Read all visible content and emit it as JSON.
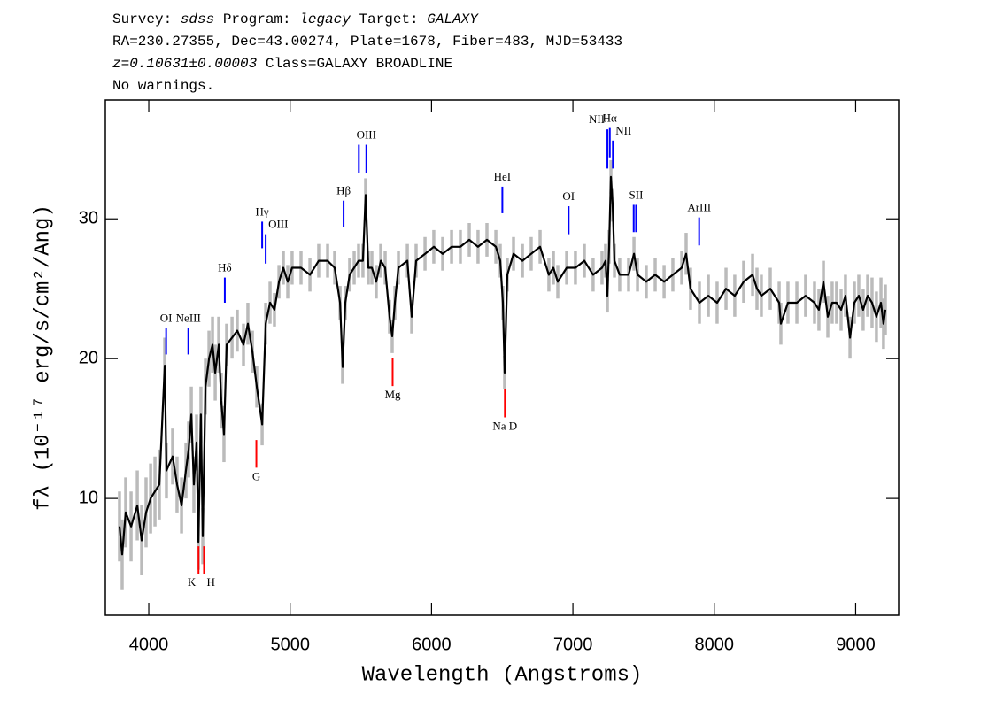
{
  "chart_data": {
    "type": "line",
    "header": [
      [
        {
          "text": "Survey: "
        },
        {
          "text": "sdss",
          "italic": true
        },
        {
          "text": " Program: "
        },
        {
          "text": "legacy",
          "italic": true
        },
        {
          "text": " Target: "
        },
        {
          "text": "GALAXY",
          "italic": true
        }
      ],
      [
        {
          "text": "RA=230.27355, Dec=43.00274, Plate=1678, Fiber=483, MJD=53433"
        }
      ],
      [
        {
          "text": "z=0.10631±0.00003",
          "italic": true
        },
        {
          "text": " Class=GALAXY BROADLINE"
        }
      ],
      [
        {
          "text": "No warnings."
        }
      ]
    ],
    "xlabel": "Wavelength (Angstroms)",
    "ylabel": "fλ (10⁻¹⁷ erg/s/cm²/Ang)",
    "xlim": [
      3693,
      9304
    ],
    "ylim": [
      1.65,
      38.5
    ],
    "xticks": [
      4000,
      5000,
      6000,
      7000,
      8000,
      9000
    ],
    "yticks": [
      10,
      20,
      30
    ],
    "color": "#000000",
    "error_color": "#bbbbbb",
    "x": [
      3793,
      3812,
      3837,
      3875,
      3919,
      3950,
      3981,
      4013,
      4044,
      4075,
      4113,
      4125,
      4169,
      4200,
      4232,
      4263,
      4282,
      4301,
      4319,
      4338,
      4351,
      4369,
      4382,
      4401,
      4426,
      4451,
      4470,
      4495,
      4513,
      4532,
      4551,
      4589,
      4626,
      4670,
      4701,
      4733,
      4764,
      4802,
      4827,
      4858,
      4889,
      4921,
      4952,
      4983,
      5014,
      5077,
      5140,
      5202,
      5265,
      5315,
      5353,
      5371,
      5390,
      5421,
      5453,
      5484,
      5515,
      5534,
      5553,
      5578,
      5609,
      5641,
      5672,
      5703,
      5722,
      5741,
      5766,
      5829,
      5860,
      5891,
      5954,
      6016,
      6079,
      6142,
      6204,
      6267,
      6329,
      6392,
      6455,
      6486,
      6505,
      6517,
      6536,
      6580,
      6643,
      6705,
      6768,
      6830,
      6862,
      6893,
      6956,
      7018,
      7081,
      7143,
      7206,
      7231,
      7244,
      7256,
      7269,
      7281,
      7294,
      7331,
      7394,
      7432,
      7457,
      7519,
      7582,
      7645,
      7707,
      7770,
      7801,
      7832,
      7895,
      7958,
      8020,
      8083,
      8145,
      8208,
      8271,
      8302,
      8333,
      8396,
      8459,
      8471,
      8521,
      8584,
      8646,
      8709,
      8740,
      8772,
      8803,
      8834,
      8865,
      8897,
      8928,
      8960,
      8991,
      9022,
      9053,
      9085,
      9116,
      9147,
      9179,
      9197,
      9210
    ],
    "values": [
      8,
      6,
      9,
      8,
      9.5,
      7,
      9,
      10,
      10.5,
      11,
      19.5,
      12,
      13,
      11,
      9.5,
      12,
      13.5,
      16,
      11,
      14,
      6.9,
      16,
      7.3,
      18,
      20,
      21,
      19,
      21,
      17,
      14.6,
      21,
      21.5,
      22,
      21,
      22.5,
      20.5,
      18,
      15.3,
      22.5,
      24,
      23.5,
      25.5,
      26.5,
      25.5,
      26.5,
      26.5,
      26,
      27,
      27,
      26.5,
      24,
      19.4,
      24,
      26,
      26.5,
      27,
      27,
      31.7,
      26.5,
      26.5,
      25.5,
      27,
      26.5,
      23,
      21.6,
      24,
      26.5,
      27,
      23,
      27,
      27.5,
      28,
      27.5,
      28,
      28,
      28.5,
      28,
      28.5,
      28,
      27,
      24,
      19,
      26,
      27.5,
      27,
      27.5,
      28,
      26,
      26.5,
      25.5,
      26.5,
      26.5,
      27,
      26,
      26.5,
      27,
      24.5,
      28,
      33,
      31,
      27,
      26,
      26,
      27.5,
      26,
      25.5,
      26,
      25.5,
      26,
      26.5,
      27.5,
      25,
      24,
      24.5,
      24,
      25,
      24.5,
      25.5,
      26,
      25,
      24.5,
      25,
      24,
      22.5,
      24,
      24,
      24.5,
      24,
      23.5,
      25.5,
      23,
      24,
      24,
      23.5,
      24.5,
      21.5,
      24,
      24.5,
      23.5,
      24.5,
      24,
      23,
      24,
      22.5,
      23.5
    ],
    "errors": [
      2.5,
      2.5,
      2.5,
      2.5,
      2.5,
      2.5,
      2.5,
      2.5,
      2.5,
      2.5,
      2,
      2,
      2,
      2,
      2,
      2,
      2,
      2,
      2,
      2,
      2,
      2,
      2,
      2,
      2,
      2,
      2,
      2,
      2,
      2,
      1.5,
      1.5,
      1.5,
      1.5,
      1.5,
      1.5,
      1.5,
      1.5,
      1.5,
      1.5,
      1.2,
      1.2,
      1.2,
      1.2,
      1.2,
      1.2,
      1.2,
      1.2,
      1.2,
      1.2,
      1.2,
      1.2,
      1.2,
      1.2,
      1.2,
      1.2,
      1.2,
      1.2,
      1.2,
      1.2,
      1.2,
      1.2,
      1.2,
      1.2,
      1.2,
      1.2,
      1.2,
      1.2,
      1.2,
      1.2,
      1.2,
      1.2,
      1.2,
      1.2,
      1.2,
      1.2,
      1.2,
      1.2,
      1.2,
      1.2,
      1.2,
      1.2,
      1.2,
      1.2,
      1.2,
      1.2,
      1.2,
      1.2,
      1.2,
      1.2,
      1.2,
      1.2,
      1.2,
      1.2,
      1.2,
      1.2,
      1.2,
      1.2,
      1.2,
      1.2,
      1.2,
      1.2,
      1.2,
      1.2,
      1.2,
      1.2,
      1.2,
      1.2,
      1.2,
      1.2,
      1.5,
      1.5,
      1.5,
      1.5,
      1.5,
      1.5,
      1.5,
      1.5,
      1.5,
      1.5,
      1.5,
      1.5,
      1.5,
      1.5,
      1.5,
      1.5,
      1.5,
      1.5,
      1.5,
      1.5,
      1.5,
      1.5,
      1.5,
      1.5,
      1.5,
      1.5,
      1.5,
      1.5,
      1.5,
      1.5,
      1.8,
      1.8,
      1.8,
      1.8,
      1.8
    ],
    "lines": [
      {
        "label": "OI",
        "x": 4123,
        "y": [
          20.3,
          22.2
        ],
        "color": "#0000ff"
      },
      {
        "label": "NeIII",
        "x": 4280,
        "y": [
          20.3,
          22.2
        ],
        "color": "#0000ff"
      },
      {
        "label": "Hδ",
        "x": 4538,
        "y": [
          24.0,
          25.8
        ],
        "color": "#0000ff"
      },
      {
        "label": "Hγ",
        "x": 4802,
        "y": [
          27.9,
          29.8
        ],
        "color": "#0000ff"
      },
      {
        "label": "OIII",
        "x": 4827,
        "y": [
          26.8,
          28.9
        ],
        "color": "#0000ff",
        "align": "right"
      },
      {
        "label": "Hβ",
        "x": 5378,
        "y": [
          29.4,
          31.3
        ],
        "color": "#0000ff"
      },
      {
        "x": 5486,
        "y": [
          33.3,
          35.3
        ],
        "color": "#0000ff"
      },
      {
        "label": "OIII",
        "x": 5539,
        "y": [
          33.3,
          35.3
        ],
        "color": "#0000ff"
      },
      {
        "label": "HeI",
        "x": 6501,
        "y": [
          30.4,
          32.3
        ],
        "color": "#0000ff"
      },
      {
        "label": "OI",
        "x": 6970,
        "y": [
          28.9,
          30.9
        ],
        "color": "#0000ff"
      },
      {
        "label": "NII",
        "x": 7244,
        "y": [
          33.6,
          36.4
        ],
        "color": "#0000ff",
        "align": "left"
      },
      {
        "label": "Hα",
        "x": 7261,
        "y": [
          34.4,
          36.5
        ],
        "color": "#0000ff"
      },
      {
        "label": "NII",
        "x": 7283,
        "y": [
          33.6,
          35.6
        ],
        "color": "#0000ff",
        "align": "right"
      },
      {
        "x": 7430,
        "y": [
          29.05,
          31.0
        ],
        "color": "#0000ff"
      },
      {
        "label": "SII",
        "x": 7447,
        "y": [
          29.05,
          31.0
        ],
        "color": "#0000ff"
      },
      {
        "label": "ArIII",
        "x": 7893,
        "y": [
          28.1,
          30.1
        ],
        "color": "#0000ff"
      },
      {
        "label": "K",
        "x": 4352,
        "y": [
          4.62,
          6.58
        ],
        "color": "#ff0000",
        "align": "left"
      },
      {
        "label": "H",
        "x": 4391,
        "y": [
          4.62,
          6.58
        ],
        "color": "#ff0000",
        "align": "right"
      },
      {
        "label": "G",
        "x": 4761,
        "y": [
          12.2,
          14.18
        ],
        "color": "#ff0000"
      },
      {
        "label": "Mg",
        "x": 5725,
        "y": [
          18.04,
          20.06
        ],
        "color": "#ff0000"
      },
      {
        "label": "Na D",
        "x": 6519,
        "y": [
          15.8,
          17.8
        ],
        "color": "#ff0000"
      }
    ]
  }
}
